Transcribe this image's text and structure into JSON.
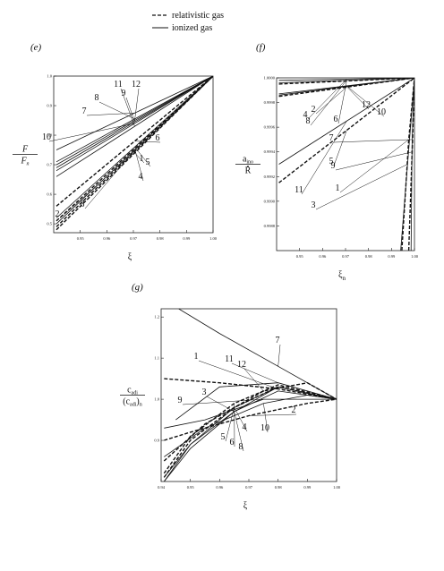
{
  "legend": {
    "relativistic": "relativistic gas",
    "ionized": "ionized gas"
  },
  "chart_data": [
    {
      "panel": "(e)",
      "type": "line",
      "xlabel": "ξ",
      "ylabel_num": "F",
      "ylabel_den": "F",
      "ylabel_den_sub": "n",
      "xlim": [
        0.94,
        1.0
      ],
      "ylim": [
        0.47,
        1.0
      ],
      "xticks": [
        "0.95",
        "0.96",
        "0.97",
        "0.98",
        "0.99",
        "1.00"
      ],
      "yticks": [
        "0.5",
        "0.6",
        "0.7",
        "0.8",
        "0.9",
        "1.0"
      ],
      "series": [
        {
          "label": "1",
          "dashed": true,
          "x": [
            0.941,
            1.0
          ],
          "y": [
            0.48,
            1.0
          ]
        },
        {
          "label": "2",
          "dashed": true,
          "x": [
            0.941,
            1.0
          ],
          "y": [
            0.49,
            1.0
          ]
        },
        {
          "label": "3",
          "dashed": false,
          "x": [
            0.941,
            1.0
          ],
          "y": [
            0.5,
            1.0
          ]
        },
        {
          "label": "4",
          "dashed": true,
          "x": [
            0.941,
            1.0
          ],
          "y": [
            0.51,
            1.0
          ]
        },
        {
          "label": "5",
          "dashed": false,
          "x": [
            0.941,
            1.0
          ],
          "y": [
            0.52,
            1.0
          ]
        },
        {
          "label": "6",
          "dashed": true,
          "x": [
            0.941,
            1.0
          ],
          "y": [
            0.56,
            1.0
          ]
        },
        {
          "label": "7",
          "dashed": false,
          "x": [
            0.941,
            1.0
          ],
          "y": [
            0.75,
            1.0
          ]
        },
        {
          "label": "8",
          "dashed": false,
          "x": [
            0.941,
            1.0
          ],
          "y": [
            0.71,
            1.0
          ]
        },
        {
          "label": "9",
          "dashed": false,
          "x": [
            0.941,
            1.0
          ],
          "y": [
            0.69,
            1.0
          ]
        },
        {
          "label": "10",
          "dashed": false,
          "x": [
            0.941,
            1.0
          ],
          "y": [
            0.68,
            1.0
          ]
        },
        {
          "label": "11",
          "dashed": false,
          "x": [
            0.941,
            1.0
          ],
          "y": [
            0.66,
            1.0
          ]
        },
        {
          "label": "12",
          "dashed": false,
          "x": [
            0.941,
            1.0
          ],
          "y": [
            0.7,
            1.0
          ]
        }
      ]
    },
    {
      "panel": "(f)",
      "type": "line",
      "xlabel": "ξ",
      "xlabel_sub": "n",
      "ylabel_num": "a",
      "ylabel_num_sub": "ino",
      "ylabel_den": "R",
      "xlim": [
        0.94,
        1.0
      ],
      "ylim": [
        0.9986,
        1.0
      ],
      "xticks": [
        "0.95",
        "0.96",
        "0.97",
        "0.98",
        "0.99",
        "1.00"
      ],
      "yticks": [
        "0.9988",
        "0.9990",
        "0.9992",
        "0.9994",
        "0.9996",
        "0.9998",
        "1.0000"
      ],
      "series": [
        {
          "label": "1",
          "dashed": true,
          "x": [
            0.9945,
            0.9975,
            1.0
          ],
          "y": [
            0.9986,
            0.9995,
            1.0
          ]
        },
        {
          "label": "2",
          "dashed": true,
          "x": [
            0.941,
            1.0
          ],
          "y": [
            0.99985,
            1.0
          ]
        },
        {
          "label": "3",
          "dashed": false,
          "x": [
            0.994,
            0.997,
            1.0
          ],
          "y": [
            0.9986,
            0.9993,
            1.0
          ]
        },
        {
          "label": "4",
          "dashed": false,
          "x": [
            0.941,
            1.0
          ],
          "y": [
            0.99998,
            1.0
          ]
        },
        {
          "label": "5",
          "dashed": true,
          "x": [
            0.941,
            1.0
          ],
          "y": [
            0.99915,
            1.0
          ]
        },
        {
          "label": "6",
          "dashed": true,
          "x": [
            0.941,
            1.0
          ],
          "y": [
            0.99995,
            1.0
          ]
        },
        {
          "label": "7",
          "dashed": false,
          "x": [
            0.9985,
            0.999,
            1.0
          ],
          "y": [
            0.9986,
            0.9995,
            1.0
          ]
        },
        {
          "label": "8",
          "dashed": false,
          "x": [
            0.941,
            1.0
          ],
          "y": [
            0.99996,
            1.0
          ]
        },
        {
          "label": "9",
          "dashed": true,
          "x": [
            0.9975,
            0.999,
            1.0
          ],
          "y": [
            0.9986,
            0.9994,
            1.0
          ]
        },
        {
          "label": "10",
          "dashed": false,
          "x": [
            0.941,
            1.0
          ],
          "y": [
            0.99987,
            1.0
          ]
        },
        {
          "label": "11",
          "dashed": false,
          "x": [
            0.941,
            1.0
          ],
          "y": [
            0.9993,
            1.0
          ]
        },
        {
          "label": "12",
          "dashed": false,
          "x": [
            0.941,
            1.0
          ],
          "y": [
            0.99986,
            1.0
          ]
        }
      ]
    },
    {
      "panel": "(g)",
      "type": "line",
      "xlabel": "ξ",
      "ylabel_num": "c",
      "ylabel_num_sub": "adi",
      "ylabel_den": "(c",
      "ylabel_den_sub": "adi",
      "ylabel_den_tail": ")",
      "ylabel_den_tail_sub": "n",
      "xlim": [
        0.94,
        1.0
      ],
      "ylim": [
        0.8,
        1.22
      ],
      "xticks": [
        "0.94",
        "0.95",
        "0.96",
        "0.97",
        "0.98",
        "0.99",
        "1.00"
      ],
      "yticks": [
        "0.9",
        "1.0",
        "1.1",
        "1.2"
      ],
      "series": [
        {
          "label": "1",
          "dashed": true,
          "x": [
            0.941,
            0.96,
            0.98,
            1.0
          ],
          "y": [
            1.05,
            1.04,
            1.025,
            1.0
          ]
        },
        {
          "label": "2",
          "dashed": true,
          "x": [
            0.941,
            0.95,
            0.97,
            0.99,
            1.0
          ],
          "y": [
            0.9,
            0.92,
            0.96,
            0.99,
            1.0
          ]
        },
        {
          "label": "3",
          "dashed": false,
          "x": [
            0.941,
            0.95,
            0.965,
            0.98,
            1.0
          ],
          "y": [
            0.81,
            0.89,
            0.97,
            1.02,
            1.0
          ]
        },
        {
          "label": "4",
          "dashed": true,
          "x": [
            0.941,
            0.95,
            0.965,
            0.98,
            1.0
          ],
          "y": [
            0.81,
            0.9,
            0.98,
            1.03,
            1.0
          ]
        },
        {
          "label": "5",
          "dashed": false,
          "x": [
            0.941,
            0.95,
            0.965,
            0.98,
            1.0
          ],
          "y": [
            0.8,
            0.89,
            0.98,
            1.03,
            1.0
          ]
        },
        {
          "label": "6",
          "dashed": true,
          "x": [
            0.941,
            0.95,
            0.965,
            0.98,
            1.0
          ],
          "y": [
            0.82,
            0.91,
            0.99,
            1.035,
            1.0
          ]
        },
        {
          "label": "7",
          "dashed": false,
          "x": [
            0.946,
            0.96,
            0.98,
            1.0
          ],
          "y": [
            1.22,
            1.16,
            1.08,
            1.0
          ]
        },
        {
          "label": "8",
          "dashed": false,
          "x": [
            0.941,
            0.95,
            0.965,
            0.98,
            1.0
          ],
          "y": [
            0.8,
            0.88,
            0.97,
            1.03,
            1.0
          ]
        },
        {
          "label": "9",
          "dashed": false,
          "x": [
            0.941,
            0.955,
            0.975,
            1.0
          ],
          "y": [
            0.93,
            0.95,
            1.0,
            1.0
          ]
        },
        {
          "label": "10",
          "dashed": false,
          "x": [
            0.941,
            0.955,
            0.975,
            0.99,
            1.0
          ],
          "y": [
            0.86,
            0.93,
            0.99,
            1.01,
            1.0
          ]
        },
        {
          "label": "11",
          "dashed": false,
          "x": [
            0.945,
            0.96,
            0.98,
            1.0
          ],
          "y": [
            0.95,
            1.03,
            1.04,
            1.0
          ]
        },
        {
          "label": "12",
          "dashed": true,
          "x": [
            0.941,
            0.955,
            0.975,
            0.99,
            1.0
          ],
          "y": [
            0.85,
            0.94,
            1.02,
            1.04,
            1.0
          ]
        }
      ]
    }
  ]
}
